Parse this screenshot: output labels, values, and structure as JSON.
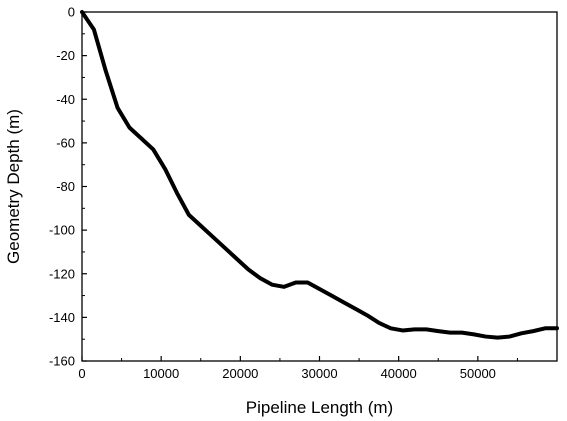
{
  "chart_data": {
    "type": "line",
    "title": "",
    "xlabel": "Pipeline Length (m)",
    "ylabel": "Geometry Depth (m)",
    "xlim": [
      0,
      60000
    ],
    "ylim": [
      -160,
      0
    ],
    "x_ticks": [
      0,
      10000,
      20000,
      30000,
      40000,
      50000
    ],
    "x_tick_labels": [
      "0",
      "10000",
      "20000",
      "30000",
      "40000",
      "50000"
    ],
    "y_ticks": [
      0,
      -20,
      -40,
      -60,
      -80,
      -100,
      -120,
      -140,
      -160
    ],
    "y_tick_labels": [
      "0",
      "-20",
      "-40",
      "-60",
      "-80",
      "-100",
      "-120",
      "-140",
      "-160"
    ],
    "grid": false,
    "legend": "none",
    "line_color": "#000000",
    "series": [
      {
        "x": [
          0,
          1500,
          3000,
          4500,
          6000,
          7500,
          9000,
          10500,
          12000,
          13500,
          15000,
          16500,
          18000,
          19500,
          21000,
          22500,
          24000,
          25500,
          27000,
          28500,
          30000,
          31500,
          33000,
          34500,
          36000,
          37500,
          39000,
          40500,
          42000,
          43500,
          45000,
          46500,
          48000,
          49500,
          51000,
          52500,
          54000,
          55500,
          57000,
          58500,
          60000
        ],
        "y": [
          0,
          -8,
          -27,
          -44,
          -53,
          -58,
          -63,
          -72,
          -83,
          -93,
          -98,
          -103,
          -108,
          -113,
          -118,
          -122,
          -125,
          -126,
          -124,
          -124,
          -127,
          -130,
          -133,
          -136,
          -139,
          -142.5,
          -145,
          -146,
          -145.5,
          -145.5,
          -146.3,
          -147,
          -147,
          -147.8,
          -148.8,
          -149.3,
          -148.8,
          -147.3,
          -146.3,
          -145,
          -145
        ]
      }
    ]
  }
}
